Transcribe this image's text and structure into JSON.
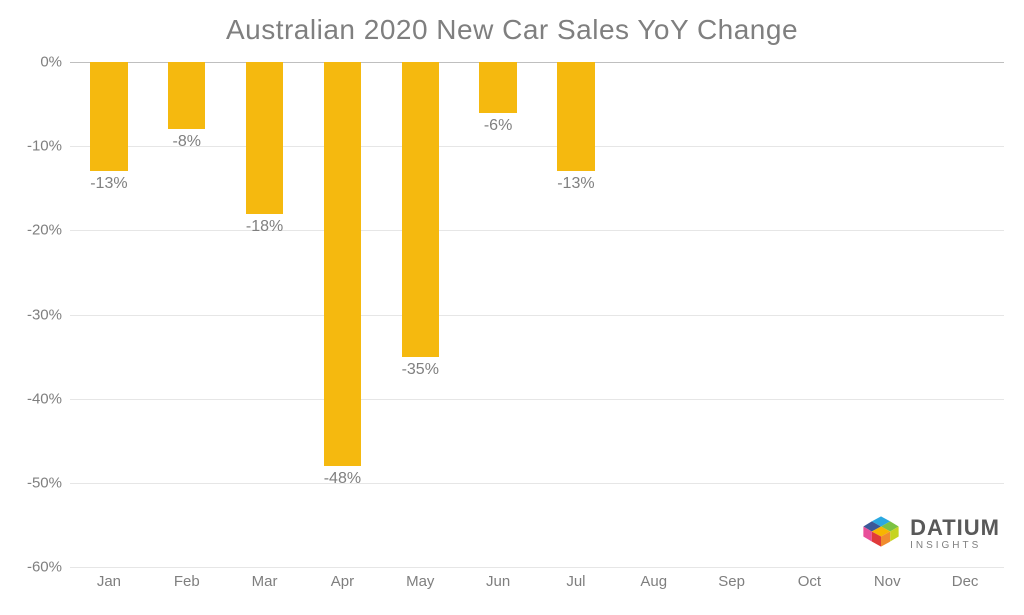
{
  "chart": {
    "type": "bar",
    "title": "Australian 2020 New Car Sales YoY Change",
    "title_color": "#7f7f7f",
    "title_fontsize": 28,
    "background_color": "#ffffff",
    "bar_color": "#f5b90f",
    "grid_color": "#e6e6e6",
    "axis_line_color": "#bfbfbf",
    "label_color": "#7f7f7f",
    "label_fontsize": 16,
    "tick_fontsize": 15,
    "bar_width_ratio": 0.48,
    "y": {
      "min": -60,
      "max": 0,
      "step": 10,
      "format": "percent"
    },
    "categories": [
      "Jan",
      "Feb",
      "Mar",
      "Apr",
      "May",
      "Jun",
      "Jul",
      "Aug",
      "Sep",
      "Oct",
      "Nov",
      "Dec"
    ],
    "values": [
      -13,
      -8,
      -18,
      -48,
      -35,
      -6,
      -13,
      null,
      null,
      null,
      null,
      null
    ],
    "value_labels": [
      "-13%",
      "-8%",
      "-18%",
      "-48%",
      "-35%",
      "-6%",
      "-13%",
      "",
      "",
      "",
      "",
      ""
    ],
    "y_ticks": [
      "0%",
      "-10%",
      "-20%",
      "-30%",
      "-40%",
      "-50%",
      "-60%"
    ]
  },
  "logo": {
    "brand": "DATIUM",
    "sub": "INSIGHTS"
  }
}
